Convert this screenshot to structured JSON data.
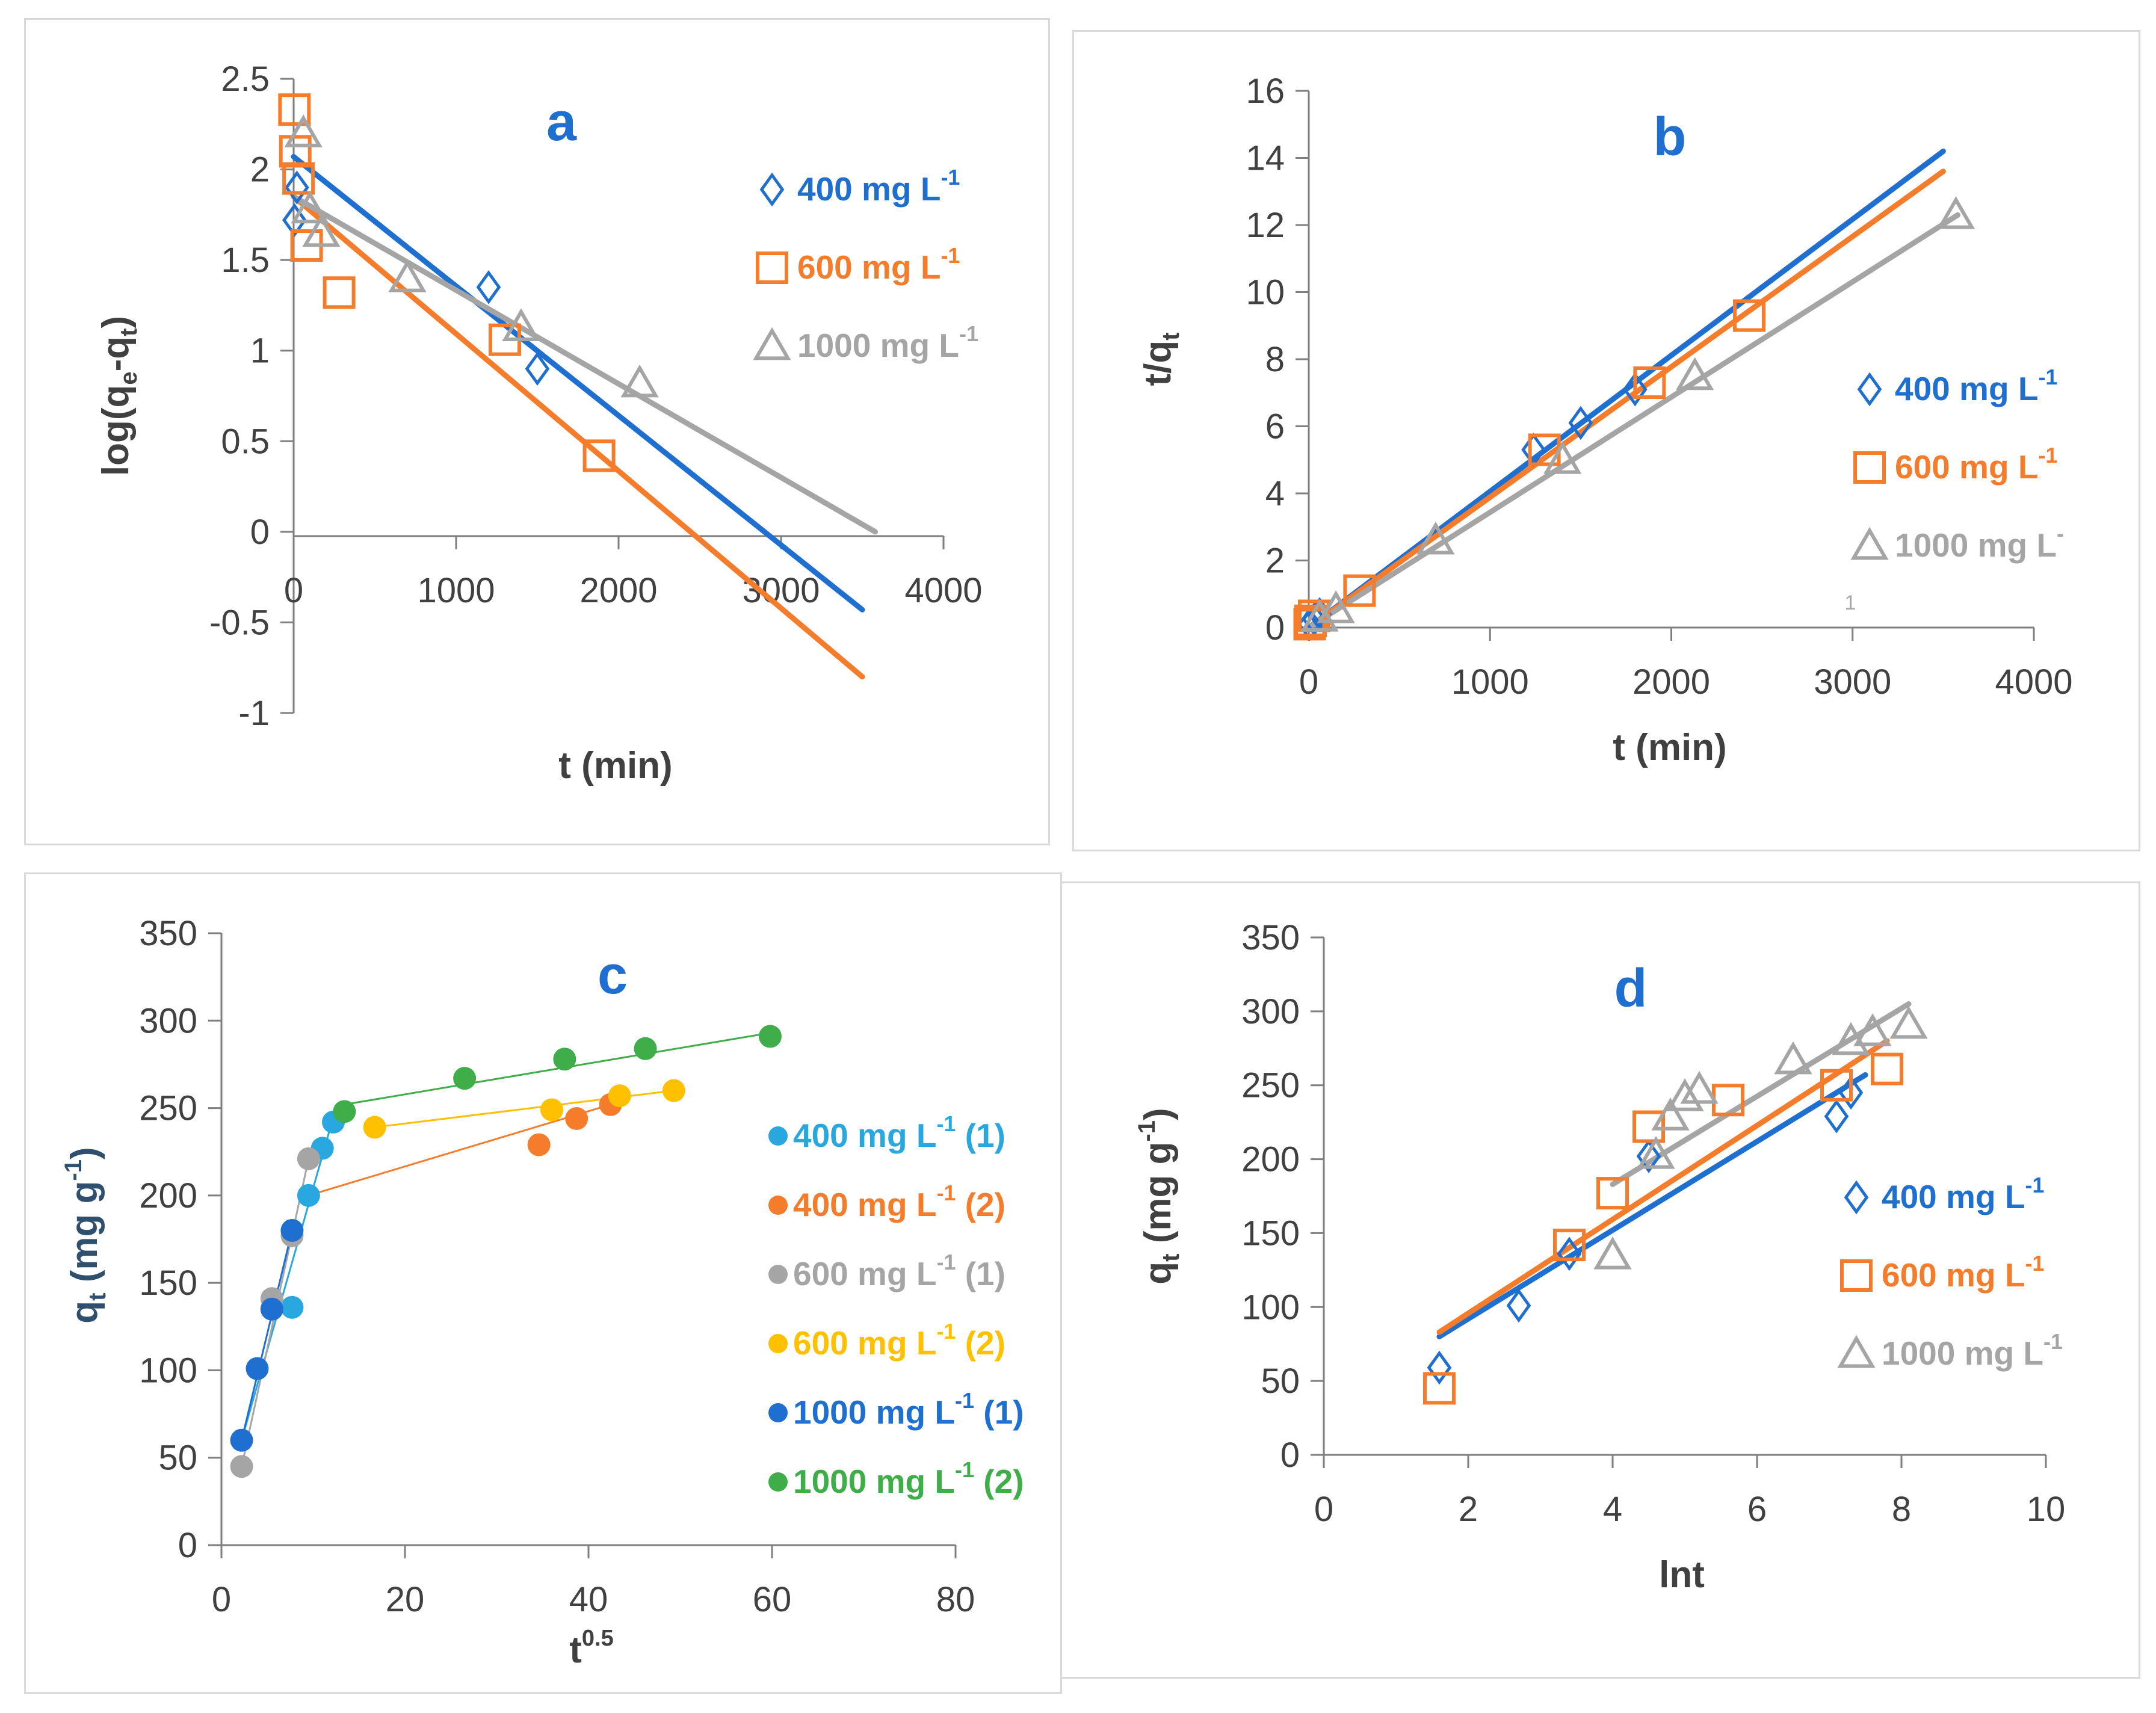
{
  "colors": {
    "blue": "#1f6fd0",
    "orange": "#f47c2b",
    "gray": "#a5a5a5",
    "lightblue": "#29a8e0",
    "yellow": "#ffc000",
    "green": "#3fae49",
    "axis": "#404040",
    "label_letter": "#1f6fd0",
    "tick_text": "#404040"
  },
  "chart_data": [
    {
      "id": "a",
      "type": "scatter",
      "letter": "a",
      "xlabel": "t (min)",
      "ylabel_parts": {
        "main": "log(q",
        "sub1": "e",
        "mid": "-q",
        "sub2": "t",
        "end": ")"
      },
      "xlim": [
        0,
        4000
      ],
      "ylim": [
        -1,
        2.5
      ],
      "xticks": [
        "0",
        "1000",
        "2000",
        "3000",
        "4000"
      ],
      "xtick_values": [
        0,
        1000,
        2000,
        3000,
        4000
      ],
      "yticks": [
        "2.5",
        "2",
        "1.5",
        "1",
        "0.5",
        "0",
        "-0.5",
        "-1"
      ],
      "ytick_values": [
        2.5,
        2,
        1.5,
        1,
        0.5,
        0,
        -0.5,
        -1
      ],
      "legend": [
        {
          "marker": "diamond",
          "color": "blue",
          "text": "400 mg L",
          "sup": "-1"
        },
        {
          "marker": "square",
          "color": "orange",
          "text": "600  mg L",
          "sup": "-1"
        },
        {
          "marker": "triangle",
          "color": "gray",
          "text": "1000 mg L",
          "sup": "-1"
        }
      ],
      "series": [
        {
          "name": "400 mg L-1",
          "marker": "diamond",
          "color": "blue",
          "points": [
            [
              5,
              1.72
            ],
            [
              20,
              1.9
            ],
            [
              1200,
              1.35
            ],
            [
              1500,
              0.9
            ]
          ],
          "line": [
            [
              0,
              2.07
            ],
            [
              3500,
              -0.43
            ]
          ]
        },
        {
          "name": "600 mg L-1",
          "marker": "square",
          "color": "orange",
          "points": [
            [
              5,
              2.33
            ],
            [
              10,
              2.1
            ],
            [
              30,
              1.95
            ],
            [
              80,
              1.58
            ],
            [
              280,
              1.32
            ],
            [
              1300,
              1.06
            ],
            [
              1880,
              0.42
            ]
          ],
          "line": [
            [
              0,
              1.85
            ],
            [
              3500,
              -0.8
            ]
          ]
        },
        {
          "name": "1000 mg L-1",
          "marker": "triangle",
          "color": "gray",
          "points": [
            [
              60,
              2.2
            ],
            [
              100,
              1.78
            ],
            [
              170,
              1.65
            ],
            [
              700,
              1.4
            ],
            [
              1400,
              1.13
            ],
            [
              2130,
              0.82
            ]
          ],
          "line": [
            [
              0,
              1.85
            ],
            [
              3580,
              0.0
            ]
          ]
        }
      ]
    },
    {
      "id": "b",
      "type": "scatter",
      "letter": "b",
      "xlabel": "t (min)",
      "ylabel_parts": {
        "main": "t/q",
        "sub": "t"
      },
      "xlim": [
        0,
        4000
      ],
      "ylim": [
        0,
        16
      ],
      "xticks": [
        "0",
        "1000",
        "2000",
        "3000",
        "4000"
      ],
      "xtick_values": [
        0,
        1000,
        2000,
        3000,
        4000
      ],
      "yticks": [
        "0",
        "2",
        "4",
        "6",
        "8",
        "10",
        "12",
        "14",
        "16"
      ],
      "ytick_values": [
        0,
        2,
        4,
        6,
        8,
        10,
        12,
        14,
        16
      ],
      "stray_label": "1",
      "legend": [
        {
          "marker": "diamond",
          "color": "blue",
          "text": "400 mg L",
          "sup": "-1"
        },
        {
          "marker": "square",
          "color": "orange",
          "text": "600  mg L",
          "sup": "-1"
        },
        {
          "marker": "triangle",
          "color": "gray",
          "text": "1000 mg L",
          "sup": "-"
        }
      ],
      "series": [
        {
          "name": "400 mg L-1",
          "marker": "diamond",
          "color": "blue",
          "points": [
            [
              5,
              0.1
            ],
            [
              30,
              0.25
            ],
            [
              60,
              0.4
            ],
            [
              1240,
              5.3
            ],
            [
              1500,
              6.1
            ],
            [
              1800,
              7.1
            ]
          ],
          "line": [
            [
              0,
              0.0
            ],
            [
              3500,
              14.2
            ]
          ]
        },
        {
          "name": "600 mg L-1",
          "marker": "square",
          "color": "orange",
          "points": [
            [
              5,
              0.1
            ],
            [
              10,
              0.2
            ],
            [
              30,
              0.35
            ],
            [
              280,
              1.1
            ],
            [
              1300,
              5.3
            ],
            [
              1880,
              7.3
            ],
            [
              2430,
              9.3
            ]
          ],
          "line": [
            [
              0,
              0.0
            ],
            [
              3500,
              13.6
            ]
          ]
        },
        {
          "name": "1000 mg L-1",
          "marker": "triangle",
          "color": "gray",
          "points": [
            [
              60,
              0.3
            ],
            [
              150,
              0.55
            ],
            [
              700,
              2.6
            ],
            [
              1400,
              5.0
            ],
            [
              2130,
              7.5
            ],
            [
              3570,
              12.3
            ]
          ],
          "line": [
            [
              0,
              0.0
            ],
            [
              3580,
              12.3
            ]
          ]
        }
      ]
    },
    {
      "id": "c",
      "type": "scatter",
      "letter": "c",
      "xlabel": "t",
      "xlabel_sup": "0.5",
      "ylabel_parts": {
        "main": "q",
        "sub": "t",
        "rest": " (mg g",
        "sup": "-1",
        "end": ")"
      },
      "xlim": [
        0,
        80
      ],
      "ylim": [
        0,
        350
      ],
      "xticks": [
        "0",
        "20",
        "40",
        "60",
        "80"
      ],
      "xtick_values": [
        0,
        20,
        40,
        60,
        80
      ],
      "yticks": [
        "0",
        "50",
        "100",
        "150",
        "200",
        "250",
        "300",
        "350"
      ],
      "ytick_values": [
        0,
        50,
        100,
        150,
        200,
        250,
        300,
        350
      ],
      "legend": [
        {
          "marker": "circle",
          "color": "lightblue",
          "text": "400 mg L",
          "sup": "-1",
          "tail": " (1)"
        },
        {
          "marker": "circle",
          "color": "orange",
          "text": "400 mg L",
          "sup": "-1",
          "tail": " (2)"
        },
        {
          "marker": "circle",
          "color": "gray",
          "text": "600 mg L",
          "sup": "-1",
          "tail": " (1)"
        },
        {
          "marker": "circle",
          "color": "yellow",
          "text": "600 mg L",
          "sup": "-1",
          "tail": " (2)"
        },
        {
          "marker": "circle",
          "color": "blue",
          "text": "1000 mg L",
          "sup": "-1",
          "tail": " (1)"
        },
        {
          "marker": "circle",
          "color": "green",
          "text": "1000 mg L",
          "sup": "-1",
          "tail": " (2)"
        }
      ],
      "series": [
        {
          "name": "400 mg L-1 (1)",
          "marker": "circle",
          "color": "lightblue",
          "points": [
            [
              5.5,
              135
            ],
            [
              7.7,
              136
            ],
            [
              9.5,
              200
            ],
            [
              11,
              227
            ],
            [
              12.2,
              242
            ]
          ],
          "line": [
            [
              2.2,
              60
            ],
            [
              12.2,
              245
            ]
          ]
        },
        {
          "name": "400 mg L-1 (2)",
          "marker": "circle",
          "color": "orange",
          "points": [
            [
              34.6,
              229
            ],
            [
              38.7,
              244
            ],
            [
              42.4,
              252
            ]
          ],
          "line": [
            [
              9.5,
              200
            ],
            [
              42.4,
              252
            ]
          ]
        },
        {
          "name": "600 mg L-1 (1)",
          "marker": "circle",
          "color": "gray",
          "points": [
            [
              2.2,
              45
            ],
            [
              5.5,
              141
            ],
            [
              7.7,
              177
            ],
            [
              9.5,
              221
            ]
          ],
          "line": [
            [
              2.2,
              45
            ],
            [
              9.5,
              221
            ]
          ]
        },
        {
          "name": "600 mg L-1 (2)",
          "marker": "circle",
          "color": "yellow",
          "points": [
            [
              16.7,
              239
            ],
            [
              36,
              249
            ],
            [
              43.4,
              257
            ],
            [
              49.3,
              260
            ]
          ],
          "line": [
            [
              16.7,
              239
            ],
            [
              49.3,
              260
            ]
          ]
        },
        {
          "name": "1000 mg L-1 (1)",
          "marker": "circle",
          "color": "blue",
          "points": [
            [
              2.2,
              60
            ],
            [
              3.9,
              101
            ],
            [
              5.5,
              135
            ],
            [
              7.7,
              180
            ]
          ],
          "line": [
            [
              2.2,
              60
            ],
            [
              7.7,
              180
            ]
          ]
        },
        {
          "name": "1000 mg L-1 (2)",
          "marker": "circle",
          "color": "green",
          "points": [
            [
              13.4,
              248
            ],
            [
              26.5,
              267
            ],
            [
              37.4,
              278
            ],
            [
              46.2,
              284
            ],
            [
              59.8,
              291
            ]
          ],
          "line": [
            [
              13.4,
              252
            ],
            [
              59.8,
              293
            ]
          ]
        }
      ]
    },
    {
      "id": "d",
      "type": "scatter",
      "letter": "d",
      "xlabel": "lnt",
      "ylabel_parts": {
        "main": "q",
        "sub": "t",
        "rest": " (mg g",
        "sup": "-1",
        "end": ")"
      },
      "xlim": [
        0,
        10
      ],
      "ylim": [
        0,
        350
      ],
      "xticks": [
        "0",
        "2",
        "4",
        "6",
        "8",
        "10"
      ],
      "xtick_values": [
        0,
        2,
        4,
        6,
        8,
        10
      ],
      "yticks": [
        "0",
        "50",
        "100",
        "150",
        "200",
        "250",
        "300",
        "350"
      ],
      "ytick_values": [
        0,
        50,
        100,
        150,
        200,
        250,
        300,
        350
      ],
      "legend": [
        {
          "marker": "diamond",
          "color": "blue",
          "text": "400 mg L",
          "sup": "-1"
        },
        {
          "marker": "square",
          "color": "orange",
          "text": "600  mg L",
          "sup": "-1"
        },
        {
          "marker": "triangle",
          "color": "gray",
          "text": "1000 mg L",
          "sup": "-1"
        }
      ],
      "series": [
        {
          "name": "400 mg L-1",
          "marker": "diamond",
          "color": "blue",
          "points": [
            [
              1.6,
              59
            ],
            [
              2.7,
              101
            ],
            [
              3.4,
              136
            ],
            [
              4.5,
              202
            ],
            [
              7.1,
              229
            ],
            [
              7.3,
              245
            ]
          ],
          "line": [
            [
              1.6,
              80
            ],
            [
              7.5,
              257
            ]
          ]
        },
        {
          "name": "600 mg L-1",
          "marker": "square",
          "color": "orange",
          "points": [
            [
              1.6,
              45
            ],
            [
              3.4,
              142
            ],
            [
              4.0,
              177
            ],
            [
              4.5,
              222
            ],
            [
              5.6,
              240
            ],
            [
              7.1,
              250
            ],
            [
              7.8,
              261
            ]
          ],
          "line": [
            [
              1.6,
              83
            ],
            [
              7.8,
              280
            ]
          ]
        },
        {
          "name": "1000 mg L-1",
          "marker": "triangle",
          "color": "gray",
          "points": [
            [
              4.0,
              135
            ],
            [
              4.6,
              203
            ],
            [
              4.8,
              229
            ],
            [
              5.0,
              242
            ],
            [
              5.2,
              247
            ],
            [
              6.5,
              267
            ],
            [
              7.3,
              280
            ],
            [
              7.6,
              286
            ],
            [
              8.1,
              291
            ]
          ],
          "line": [
            [
              4.0,
              183
            ],
            [
              8.1,
              305
            ]
          ]
        }
      ]
    }
  ]
}
